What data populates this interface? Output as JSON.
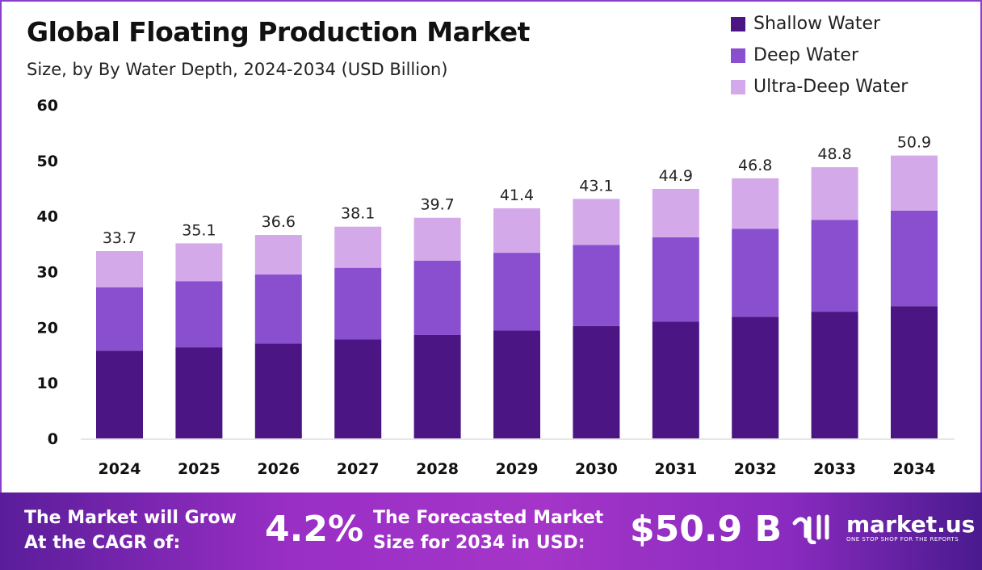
{
  "chart_data": {
    "type": "bar",
    "stacked": true,
    "title": "Global Floating Production Market",
    "subtitle": "Size, by By Water Depth, 2024-2034 (USD Billion)",
    "categories": [
      "2024",
      "2025",
      "2026",
      "2027",
      "2028",
      "2029",
      "2030",
      "2031",
      "2032",
      "2033",
      "2034"
    ],
    "series": [
      {
        "name": "Shallow Water",
        "color": "#4b1683",
        "values": [
          15.8,
          16.4,
          17.1,
          17.8,
          18.6,
          19.4,
          20.2,
          21.0,
          21.9,
          22.8,
          23.8
        ]
      },
      {
        "name": "Deep Water",
        "color": "#8a4fcf",
        "values": [
          11.4,
          11.9,
          12.4,
          12.9,
          13.4,
          14.0,
          14.6,
          15.2,
          15.8,
          16.5,
          17.2
        ]
      },
      {
        "name": "Ultra-Deep Water",
        "color": "#d3a9ea",
        "values": [
          6.5,
          6.8,
          7.1,
          7.4,
          7.7,
          8.0,
          8.3,
          8.7,
          9.1,
          9.5,
          9.9
        ]
      }
    ],
    "totals": [
      "33.7",
      "35.1",
      "36.6",
      "38.1",
      "39.7",
      "41.4",
      "43.1",
      "44.9",
      "46.8",
      "48.8",
      "50.9"
    ],
    "yticks": [
      "0",
      "10",
      "20",
      "30",
      "40",
      "50",
      "60"
    ],
    "ylim": [
      0,
      60
    ],
    "grid": false,
    "legend_position": "top-right"
  },
  "footer": {
    "cagr_label_line1": "The Market will Grow",
    "cagr_label_line2": "At the CAGR of:",
    "cagr_value": "4.2%",
    "forecast_label_line1": "The Forecasted Market",
    "forecast_label_line2": "Size for 2034 in USD:",
    "forecast_value": "$50.9 B",
    "logo_name": "market.us",
    "logo_tagline": "ONE STOP SHOP FOR THE REPORTS"
  }
}
